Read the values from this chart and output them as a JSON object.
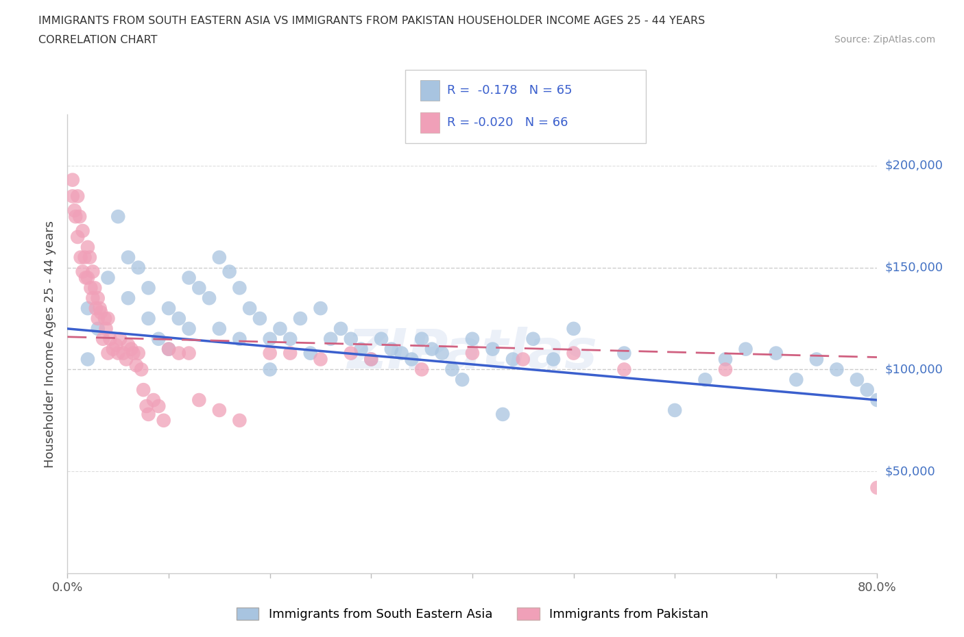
{
  "title_line1": "IMMIGRANTS FROM SOUTH EASTERN ASIA VS IMMIGRANTS FROM PAKISTAN HOUSEHOLDER INCOME AGES 25 - 44 YEARS",
  "title_line2": "CORRELATION CHART",
  "source_text": "Source: ZipAtlas.com",
  "ylabel": "Householder Income Ages 25 - 44 years",
  "x_min": 0.0,
  "x_max": 0.8,
  "y_min": 0,
  "y_max": 225000,
  "background_color": "#ffffff",
  "blue_color": "#a8c4e0",
  "pink_color": "#f0a0b8",
  "blue_line_color": "#3a5fcd",
  "pink_line_color": "#d06080",
  "legend_label_blue": "Immigrants from South Eastern Asia",
  "legend_label_pink": "Immigrants from Pakistan",
  "watermark_text": "ZIPatlas",
  "blue_scatter_x": [
    0.02,
    0.02,
    0.03,
    0.04,
    0.05,
    0.06,
    0.06,
    0.07,
    0.08,
    0.08,
    0.09,
    0.1,
    0.1,
    0.11,
    0.12,
    0.12,
    0.13,
    0.14,
    0.15,
    0.15,
    0.16,
    0.17,
    0.17,
    0.18,
    0.19,
    0.2,
    0.2,
    0.21,
    0.22,
    0.23,
    0.24,
    0.25,
    0.26,
    0.27,
    0.28,
    0.29,
    0.3,
    0.31,
    0.32,
    0.33,
    0.34,
    0.35,
    0.36,
    0.37,
    0.38,
    0.39,
    0.4,
    0.42,
    0.43,
    0.44,
    0.46,
    0.48,
    0.5,
    0.55,
    0.6,
    0.63,
    0.65,
    0.67,
    0.7,
    0.72,
    0.74,
    0.76,
    0.78,
    0.79,
    0.8
  ],
  "blue_scatter_y": [
    130000,
    105000,
    120000,
    145000,
    175000,
    155000,
    135000,
    150000,
    140000,
    125000,
    115000,
    110000,
    130000,
    125000,
    145000,
    120000,
    140000,
    135000,
    155000,
    120000,
    148000,
    140000,
    115000,
    130000,
    125000,
    115000,
    100000,
    120000,
    115000,
    125000,
    108000,
    130000,
    115000,
    120000,
    115000,
    110000,
    105000,
    115000,
    110000,
    108000,
    105000,
    115000,
    110000,
    108000,
    100000,
    95000,
    115000,
    110000,
    78000,
    105000,
    115000,
    105000,
    120000,
    108000,
    80000,
    95000,
    105000,
    110000,
    108000,
    95000,
    105000,
    100000,
    95000,
    90000,
    85000
  ],
  "pink_scatter_x": [
    0.005,
    0.005,
    0.007,
    0.008,
    0.01,
    0.01,
    0.012,
    0.013,
    0.015,
    0.015,
    0.017,
    0.018,
    0.02,
    0.02,
    0.022,
    0.023,
    0.025,
    0.025,
    0.027,
    0.028,
    0.03,
    0.03,
    0.032,
    0.033,
    0.035,
    0.037,
    0.038,
    0.04,
    0.04,
    0.042,
    0.045,
    0.048,
    0.05,
    0.052,
    0.055,
    0.058,
    0.06,
    0.063,
    0.065,
    0.068,
    0.07,
    0.073,
    0.075,
    0.078,
    0.08,
    0.085,
    0.09,
    0.095,
    0.1,
    0.11,
    0.12,
    0.13,
    0.15,
    0.17,
    0.2,
    0.22,
    0.25,
    0.28,
    0.3,
    0.35,
    0.4,
    0.45,
    0.5,
    0.55,
    0.65,
    0.8
  ],
  "pink_scatter_y": [
    185000,
    193000,
    178000,
    175000,
    185000,
    165000,
    175000,
    155000,
    148000,
    168000,
    155000,
    145000,
    145000,
    160000,
    155000,
    140000,
    148000,
    135000,
    140000,
    130000,
    135000,
    125000,
    130000,
    128000,
    115000,
    125000,
    120000,
    125000,
    108000,
    115000,
    110000,
    112000,
    108000,
    115000,
    108000,
    105000,
    112000,
    110000,
    108000,
    102000,
    108000,
    100000,
    90000,
    82000,
    78000,
    85000,
    82000,
    75000,
    110000,
    108000,
    108000,
    85000,
    80000,
    75000,
    108000,
    108000,
    105000,
    108000,
    105000,
    100000,
    108000,
    105000,
    108000,
    100000,
    100000,
    42000
  ]
}
